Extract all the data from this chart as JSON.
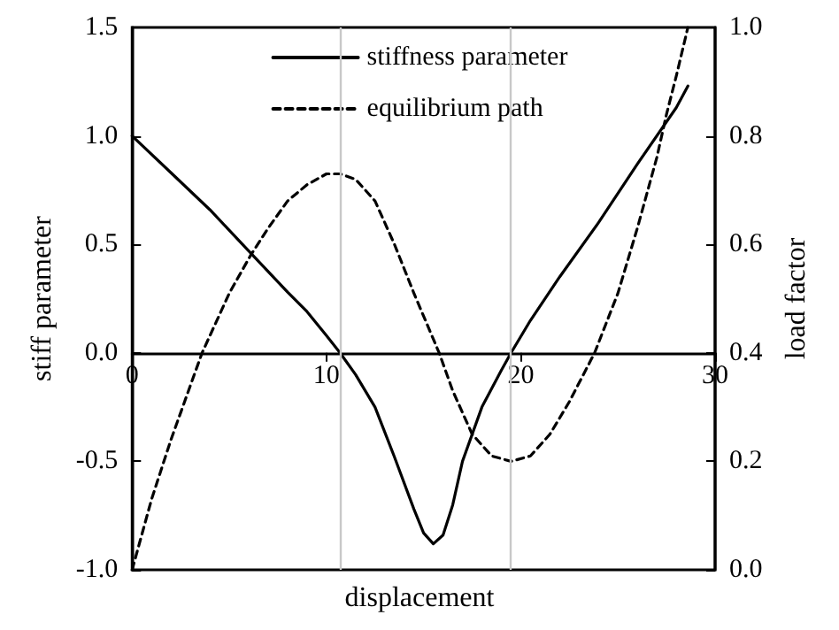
{
  "chart_data": {
    "type": "line",
    "xlabel": "displacement",
    "ylabel": "stiff parameter",
    "y2label": "load factor",
    "xlim": [
      0,
      30
    ],
    "xticks": [
      0,
      10,
      20,
      30
    ],
    "ylim": [
      -1.0,
      1.5
    ],
    "yticks": [
      {
        "value": -1,
        "label": "-1.0"
      },
      {
        "value": -0.5,
        "label": "-0.5"
      },
      {
        "value": 0,
        "label": "0.0"
      },
      {
        "value": 0.5,
        "label": "0.5"
      },
      {
        "value": 1,
        "label": "1.0"
      },
      {
        "value": 1.5,
        "label": "1.5"
      }
    ],
    "y2lim": [
      0,
      1.0
    ],
    "y2ticks": [
      {
        "value": 0,
        "label": "0.0"
      },
      {
        "value": 0.2,
        "label": "0.2"
      },
      {
        "value": 0.4,
        "label": "0.4"
      },
      {
        "value": 0.6,
        "label": "0.6"
      },
      {
        "value": 0.8,
        "label": "0.8"
      },
      {
        "value": 1,
        "label": "1.0"
      }
    ],
    "grid": false,
    "legend": "top",
    "marker": "none",
    "series": [
      {
        "name": "stiffness parameter",
        "color": "#000000",
        "line_style": "solid",
        "x": [
          0,
          2,
          4,
          6,
          8,
          9,
          10,
          10.7,
          11.5,
          12.5,
          13.5,
          14.5,
          15,
          15.5,
          16,
          16.5,
          17,
          18,
          19,
          19.5,
          20.5,
          22,
          24,
          26,
          28,
          28.6
        ],
        "values": [
          1.0,
          0.83,
          0.66,
          0.47,
          0.28,
          0.19,
          0.08,
          0,
          -0.1,
          -0.25,
          -0.48,
          -0.72,
          -0.83,
          -0.88,
          -0.84,
          -0.7,
          -0.5,
          -0.25,
          -0.08,
          0,
          0.15,
          0.35,
          0.6,
          0.87,
          1.13,
          1.23
        ]
      },
      {
        "name": "equilibrium path",
        "color": "#000000",
        "line_style": "dashed",
        "axis": "y2",
        "x": [
          0,
          1,
          2,
          3,
          3.6,
          5,
          6.1,
          7,
          8,
          9,
          10,
          10.7,
          11.5,
          12.5,
          13.5,
          14.5,
          15.8,
          16.5,
          17.5,
          18.5,
          19.5,
          20.5,
          21.5,
          22.5,
          23.8,
          25,
          26,
          27,
          27.5,
          28,
          28.6
        ],
        "values": [
          0,
          0.13,
          0.24,
          0.34,
          0.4,
          0.51,
          0.58,
          0.63,
          0.68,
          0.71,
          0.73,
          0.73,
          0.72,
          0.68,
          0.6,
          0.51,
          0.4,
          0.33,
          0.25,
          0.21,
          0.2,
          0.21,
          0.25,
          0.31,
          0.4,
          0.51,
          0.63,
          0.76,
          0.84,
          0.91,
          1.0
        ]
      }
    ],
    "ref_lines": [
      {
        "axis": "x",
        "value": 10.7,
        "color": "#c8c8c8"
      },
      {
        "axis": "x",
        "value": 19.5,
        "color": "#c8c8c8"
      }
    ]
  }
}
